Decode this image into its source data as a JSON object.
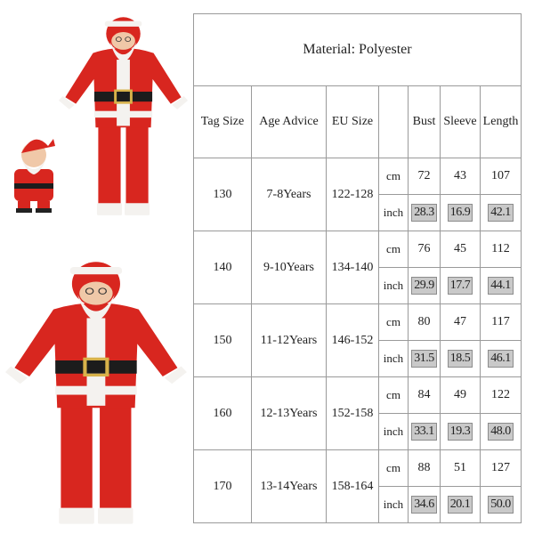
{
  "table": {
    "title": "Material: Polyester",
    "headers": {
      "tag_size": "Tag Size",
      "age_advice": "Age Advice",
      "eu_size": "EU Size",
      "bust": "Bust",
      "sleeve": "Sleeve",
      "length": "Length"
    },
    "rows": [
      {
        "tag": "130",
        "age": "7-8Years",
        "eu": "122-128",
        "cm_label": "cm",
        "inch_label": "inch",
        "cm": {
          "bust": "72",
          "sleeve": "43",
          "length": "107"
        },
        "inch": {
          "bust": "28.3",
          "sleeve": "16.9",
          "length": "42.1"
        }
      },
      {
        "tag": "140",
        "age": "9-10Years",
        "eu": "134-140",
        "cm_label": "cm",
        "inch_label": "inch",
        "cm": {
          "bust": "76",
          "sleeve": "45",
          "length": "112"
        },
        "inch": {
          "bust": "29.9",
          "sleeve": "17.7",
          "length": "44.1"
        }
      },
      {
        "tag": "150",
        "age": "11-12Years",
        "eu": "146-152",
        "cm_label": "cm",
        "inch_label": "inch",
        "cm": {
          "bust": "80",
          "sleeve": "47",
          "length": "117"
        },
        "inch": {
          "bust": "31.5",
          "sleeve": "18.5",
          "length": "46.1"
        }
      },
      {
        "tag": "160",
        "age": "12-13Years",
        "eu": "152-158",
        "cm_label": "cm",
        "inch_label": "inch",
        "cm": {
          "bust": "84",
          "sleeve": "49",
          "length": "122"
        },
        "inch": {
          "bust": "33.1",
          "sleeve": "19.3",
          "length": "48.0"
        }
      },
      {
        "tag": "170",
        "age": "13-14Years",
        "eu": "158-164",
        "cm_label": "cm",
        "inch_label": "inch",
        "cm": {
          "bust": "88",
          "sleeve": "51",
          "length": "127"
        },
        "inch": {
          "bust": "34.6",
          "sleeve": "20.1",
          "length": "50.0"
        }
      }
    ]
  },
  "colors": {
    "suit_red": "#d8261f",
    "fur_white": "#f4f2ef",
    "belt_black": "#1c1c1c",
    "buckle_gold": "#d8b24a",
    "inch_cell_gray": "#c9c9c9",
    "border_gray": "#9a9a9a"
  }
}
